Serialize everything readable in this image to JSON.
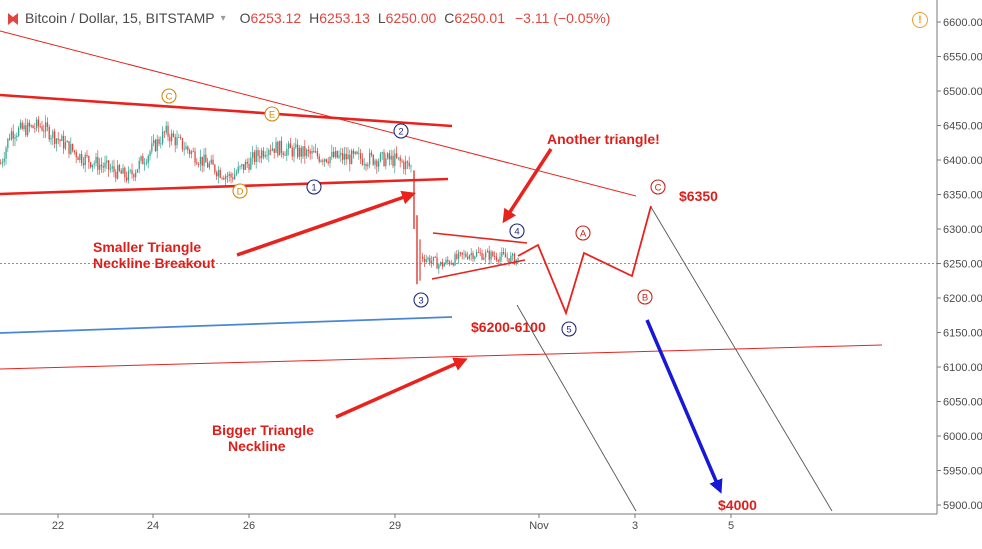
{
  "legend": {
    "symbol": "Bitcoin / Dollar, 15, BITSTAMP",
    "open_k": "O",
    "open_v": "6253.12",
    "high_k": "H",
    "high_v": "6253.13",
    "low_k": "L",
    "low_v": "6250.00",
    "close_k": "C",
    "close_v": "6250.01",
    "change": "−3.11 (−0.05%)",
    "colors": {
      "text": "#4a4a4a",
      "value": "#e0463f",
      "warning": "#f39c28"
    }
  },
  "chart_data": {
    "type": "line",
    "title": "",
    "xlabel": "",
    "ylabel": "",
    "ylim": [
      5890,
      6625
    ],
    "y_ticks": [
      "6600.00",
      "6550.00",
      "6500.00",
      "6450.00",
      "6400.00",
      "6350.00",
      "6300.00",
      "6250.00",
      "6200.00",
      "6150.00",
      "6100.00",
      "6050.00",
      "6000.00",
      "5950.00",
      "5900.00"
    ],
    "x_ticks": [
      "22",
      "24",
      "26",
      "29",
      "Nov",
      "3",
      "5"
    ],
    "current_price_line": 6250,
    "grid": false,
    "annotations": {
      "another_triangle": "Another triangle!",
      "smaller_triangle_1": "Smaller Triangle",
      "smaller_triangle_2": "Neckline Breakout",
      "bigger_triangle_1": "Bigger Triangle",
      "bigger_triangle_2": "Neckline",
      "target_6350": "$6350",
      "target_6200_6100": "$6200-6100",
      "target_4000": "$4000"
    },
    "wave_labels": {
      "c_top": "C",
      "e": "E",
      "d": "D",
      "w1": "1",
      "w2": "2",
      "w3": "3",
      "w4": "4",
      "w5": "5",
      "A": "A",
      "B": "B",
      "C": "C"
    },
    "price_path_sketch": [
      6235,
      6255,
      6225,
      6265,
      6280,
      6190
    ],
    "colors": {
      "candles_up": "#35a28e",
      "candles_down": "#e0463f",
      "trend_red": "#e8231d",
      "blue_line": "#4a86d6",
      "arrow_blue": "#1717d8",
      "text_red": "#dc1f1a"
    }
  }
}
